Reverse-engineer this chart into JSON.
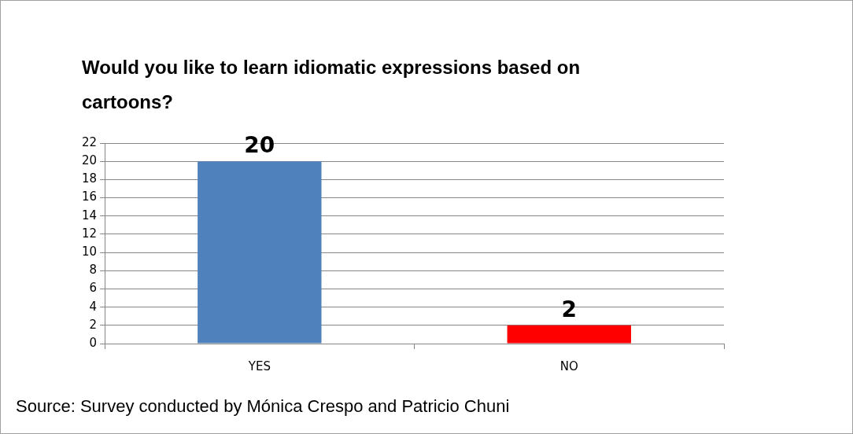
{
  "chart_data": {
    "type": "bar",
    "title": "Would you like to learn idiomatic expressions based on cartoons?",
    "categories": [
      "YES",
      "NO"
    ],
    "values": [
      20,
      2
    ],
    "colors": [
      "#4f81bd",
      "#ff0000"
    ],
    "ylim": [
      0,
      22
    ],
    "yticks": [
      0,
      2,
      4,
      6,
      8,
      10,
      12,
      14,
      16,
      18,
      20,
      22
    ],
    "grid": "y",
    "legend": false,
    "data_labels": true,
    "annotations": [
      "Source:  Survey conducted by Mónica Crespo and Patricio Chuni"
    ]
  }
}
